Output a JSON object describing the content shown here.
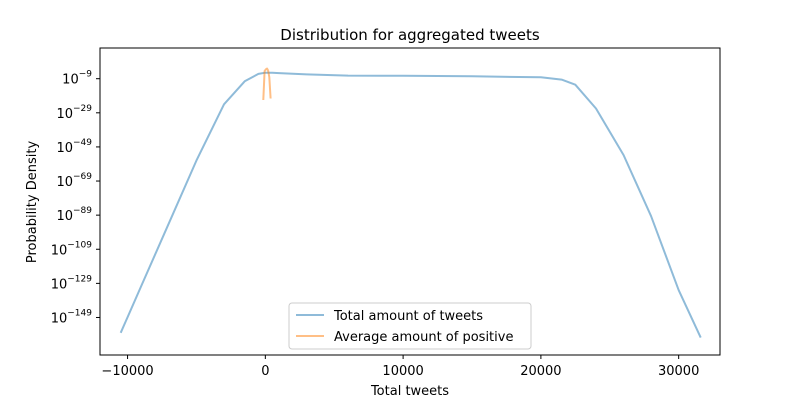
{
  "chart_data": {
    "type": "line",
    "title": "Distribution for aggregated tweets",
    "xlabel": "Total tweets",
    "ylabel": "Probability Density",
    "xlim": [
      -12000,
      33000
    ],
    "ylim_log10": [
      -171,
      9
    ],
    "y_scale": "log",
    "x_ticks": [
      {
        "value": -10000,
        "label": "−10000"
      },
      {
        "value": 0,
        "label": "0"
      },
      {
        "value": 10000,
        "label": "10000"
      },
      {
        "value": 20000,
        "label": "20000"
      },
      {
        "value": 30000,
        "label": "30000"
      }
    ],
    "y_ticks": [
      {
        "exp": -9,
        "base": "10",
        "power": "−9"
      },
      {
        "exp": -29,
        "base": "10",
        "power": "−29"
      },
      {
        "exp": -49,
        "base": "10",
        "power": "−49"
      },
      {
        "exp": -69,
        "base": "10",
        "power": "−69"
      },
      {
        "exp": -89,
        "base": "10",
        "power": "−89"
      },
      {
        "exp": -109,
        "base": "10",
        "power": "−109"
      },
      {
        "exp": -129,
        "base": "10",
        "power": "−129"
      },
      {
        "exp": -149,
        "base": "10",
        "power": "−149"
      }
    ],
    "grid": false,
    "legend_position": "bottom-center",
    "series": [
      {
        "name": "Total amount of tweets",
        "color": "#1f77b4",
        "x": [
          -10500,
          -9000,
          -7000,
          -5000,
          -3000,
          -1500,
          -500,
          0,
          500,
          1000,
          3000,
          6000,
          10000,
          15000,
          20000,
          21500,
          22500,
          24000,
          26000,
          28000,
          30000,
          31600
        ],
        "log10_y": [
          -158,
          -130.5,
          -93.7,
          -57,
          -24,
          -10.5,
          -6.2,
          -5.5,
          -5.5,
          -5.7,
          -6.5,
          -7.2,
          -7.3,
          -7.6,
          -8.2,
          -9.5,
          -12.5,
          -26.5,
          -53.8,
          -89.6,
          -133,
          -160.8
        ]
      },
      {
        "name": "Average amount of positive",
        "color": "#ff7f0e",
        "x": [
          -150,
          -50,
          40,
          120,
          200,
          290,
          380
        ],
        "log10_y": [
          -21.5,
          -4.5,
          -3.5,
          -3,
          -4.2,
          -8,
          -20.6
        ]
      }
    ]
  }
}
